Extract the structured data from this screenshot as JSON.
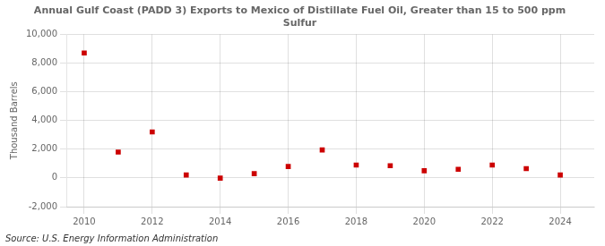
{
  "chart_data": {
    "type": "scatter",
    "title": "Annual Gulf Coast (PADD 3) Exports to Mexico of Distillate Fuel Oil, Greater than 15 to 500 ppm\nSulfur",
    "ylabel": "Thousand Barrels",
    "source": "Source: U.S. Energy Information Administration",
    "x": [
      2010,
      2011,
      2012,
      2013,
      2014,
      2015,
      2016,
      2017,
      2018,
      2019,
      2020,
      2021,
      2022,
      2023,
      2024
    ],
    "values": [
      8700,
      1800,
      3200,
      200,
      -10,
      300,
      800,
      1950,
      900,
      850,
      500,
      600,
      900,
      650,
      200
    ],
    "color": "#cc0000",
    "marker": "square",
    "xlim": [
      2009.5,
      2025.0
    ],
    "xticks": [
      2010,
      2012,
      2014,
      2016,
      2018,
      2020,
      2022,
      2024
    ],
    "ylim": [
      -2000,
      10000
    ],
    "yticks": [
      {
        "value": -2000,
        "label": "-2,000"
      },
      0,
      {
        "value": 2000,
        "label": "2,000"
      },
      {
        "value": 4000,
        "label": "4,000"
      },
      {
        "value": 6000,
        "label": "6,000"
      },
      {
        "value": 8000,
        "label": "8,000"
      },
      {
        "value": 10000,
        "label": "10,000"
      }
    ],
    "grid": true
  }
}
